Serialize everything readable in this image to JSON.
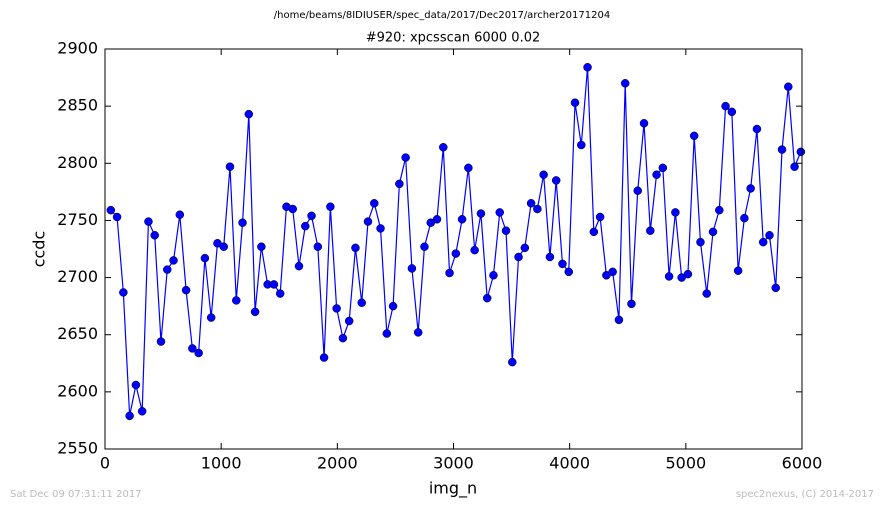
{
  "chart_data": {
    "type": "line",
    "suptitle": "/home/beams/8IDIUSER/spec_data/2017/Dec2017/archer20171204",
    "title": "#920: xpcsscan 6000 0.02",
    "x_label": "img_n",
    "y_label": "ccdc",
    "footer_left": "Sat Dec 09 07:31:11 2017",
    "footer_right": "spec2nexus, (C) 2014-2017",
    "xlim": [
      0,
      6000
    ],
    "ylim": [
      2550,
      2900
    ],
    "xticks": [
      0,
      1000,
      2000,
      3000,
      4000,
      5000,
      6000
    ],
    "yticks": [
      2550,
      2600,
      2650,
      2700,
      2750,
      2800,
      2850,
      2900
    ],
    "color": "#0000ff",
    "x": [
      50,
      104,
      158,
      212,
      266,
      320,
      374,
      428,
      482,
      536,
      590,
      644,
      698,
      752,
      806,
      860,
      914,
      968,
      1022,
      1076,
      1130,
      1184,
      1238,
      1292,
      1346,
      1400,
      1454,
      1508,
      1562,
      1616,
      1670,
      1724,
      1778,
      1832,
      1886,
      1940,
      1994,
      2048,
      2102,
      2156,
      2210,
      2264,
      2318,
      2372,
      2426,
      2480,
      2534,
      2588,
      2642,
      2696,
      2750,
      2804,
      2858,
      2912,
      2966,
      3020,
      3074,
      3128,
      3182,
      3236,
      3290,
      3344,
      3398,
      3452,
      3506,
      3560,
      3614,
      3668,
      3722,
      3776,
      3830,
      3884,
      3938,
      3992,
      4046,
      4100,
      4154,
      4208,
      4262,
      4316,
      4370,
      4424,
      4478,
      4532,
      4586,
      4640,
      4694,
      4748,
      4802,
      4856,
      4910,
      4964,
      5018,
      5072,
      5126,
      5180,
      5234,
      5288,
      5342,
      5396,
      5450,
      5504,
      5558,
      5612,
      5666,
      5720,
      5774,
      5828,
      5882,
      5936,
      5990
    ],
    "values": [
      2759,
      2753,
      2687,
      2579,
      2606,
      2583,
      2749,
      2737,
      2644,
      2707,
      2715,
      2755,
      2689,
      2638,
      2634,
      2717,
      2665,
      2730,
      2727,
      2797,
      2680,
      2748,
      2843,
      2670,
      2727,
      2694,
      2694,
      2686,
      2762,
      2760,
      2710,
      2745,
      2754,
      2727,
      2630,
      2762,
      2673,
      2647,
      2662,
      2726,
      2678,
      2749,
      2765,
      2743,
      2651,
      2675,
      2782,
      2805,
      2708,
      2652,
      2727,
      2748,
      2751,
      2814,
      2704,
      2721,
      2751,
      2796,
      2724,
      2756,
      2682,
      2702,
      2757,
      2741,
      2626,
      2718,
      2726,
      2765,
      2760,
      2790,
      2718,
      2785,
      2712,
      2705,
      2853,
      2816,
      2884,
      2740,
      2753,
      2702,
      2705,
      2663,
      2870,
      2677,
      2776,
      2835,
      2741,
      2790,
      2796,
      2701,
      2757,
      2700,
      2703,
      2824,
      2731,
      2686,
      2740,
      2759,
      2850,
      2845,
      2706,
      2752,
      2778,
      2830,
      2731,
      2737,
      2691,
      2812,
      2867,
      2797,
      2810
    ]
  }
}
